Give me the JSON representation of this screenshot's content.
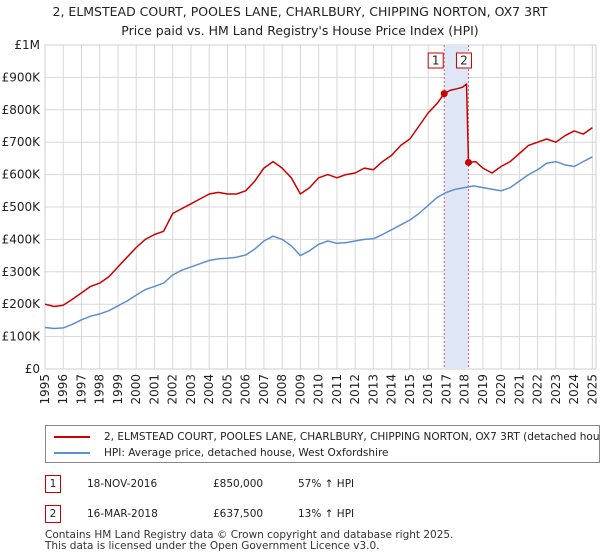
{
  "title_line1": "2, ELMSTEAD COURT, POOLES LANE, CHARLBURY, CHIPPING NORTON, OX7 3RT",
  "title_line2": "Price paid vs. HM Land Registry's House Price Index (HPI)",
  "colors": {
    "property": "#cc0000",
    "hpi": "#5b8fd0",
    "highlight": "#dfe7f7",
    "marker_border": "#cc0000"
  },
  "chart_data": {
    "type": "line",
    "title": "2, ELMSTEAD COURT, POOLES LANE, CHARLBURY, CHIPPING NORTON, OX7 3RT — Price paid vs. HM Land Registry's House Price Index (HPI)",
    "xlabel": "",
    "ylabel": "",
    "xlim": [
      1995,
      2025.2
    ],
    "ylim": [
      0,
      1000000
    ],
    "y_ticks": [
      0,
      100000,
      200000,
      300000,
      400000,
      500000,
      600000,
      700000,
      800000,
      900000,
      1000000
    ],
    "y_tick_labels": [
      "£0",
      "£100K",
      "£200K",
      "£300K",
      "£400K",
      "£500K",
      "£600K",
      "£700K",
      "£800K",
      "£900K",
      "£1M"
    ],
    "x_ticks": [
      1995,
      1996,
      1997,
      1998,
      1999,
      2000,
      2001,
      2002,
      2003,
      2004,
      2005,
      2006,
      2007,
      2008,
      2009,
      2010,
      2011,
      2012,
      2013,
      2014,
      2015,
      2016,
      2017,
      2018,
      2019,
      2020,
      2021,
      2022,
      2023,
      2024,
      2025
    ],
    "x_tick_labels": [
      "1995",
      "1996",
      "1997",
      "1998",
      "1999",
      "2000",
      "2001",
      "2002",
      "2003",
      "2004",
      "2005",
      "2006",
      "2007",
      "2008",
      "2009",
      "2010",
      "2011",
      "2012",
      "2013",
      "2014",
      "2015",
      "2016",
      "2017",
      "2018",
      "2019",
      "2020",
      "2021",
      "2022",
      "2023",
      "2024",
      "2025"
    ],
    "grid": true,
    "series": [
      {
        "name": "2, ELMSTEAD COURT, POOLES LANE, CHARLBURY, CHIPPING NORTON, OX7 3RT (detached house)",
        "color": "#cc0000",
        "x": [
          1995.0,
          1995.5,
          1996.0,
          1996.5,
          1997.0,
          1997.5,
          1998.0,
          1998.5,
          1999.0,
          1999.5,
          2000.0,
          2000.5,
          2001.0,
          2001.5,
          2002.0,
          2002.5,
          2003.0,
          2003.5,
          2004.0,
          2004.5,
          2005.0,
          2005.5,
          2006.0,
          2006.5,
          2007.0,
          2007.5,
          2008.0,
          2008.5,
          2009.0,
          2009.5,
          2010.0,
          2010.5,
          2011.0,
          2011.5,
          2012.0,
          2012.5,
          2013.0,
          2013.5,
          2014.0,
          2014.5,
          2015.0,
          2015.5,
          2016.0,
          2016.5,
          2016.88,
          2017.2,
          2017.6,
          2017.9,
          2018.1,
          2018.21,
          2018.6,
          2019.0,
          2019.5,
          2020.0,
          2020.5,
          2021.0,
          2021.5,
          2022.0,
          2022.5,
          2023.0,
          2023.5,
          2024.0,
          2024.5,
          2025.0
        ],
        "values": [
          200000,
          193000,
          197000,
          215000,
          235000,
          255000,
          265000,
          285000,
          315000,
          345000,
          375000,
          400000,
          415000,
          425000,
          480000,
          495000,
          510000,
          525000,
          540000,
          545000,
          540000,
          540000,
          550000,
          580000,
          620000,
          640000,
          620000,
          590000,
          540000,
          560000,
          590000,
          600000,
          590000,
          600000,
          605000,
          620000,
          615000,
          640000,
          660000,
          690000,
          710000,
          750000,
          790000,
          820000,
          850000,
          860000,
          865000,
          870000,
          880000,
          637500,
          640000,
          620000,
          605000,
          625000,
          640000,
          665000,
          690000,
          700000,
          710000,
          700000,
          720000,
          735000,
          725000,
          745000
        ]
      },
      {
        "name": "HPI: Average price, detached house, West Oxfordshire",
        "color": "#5b8fd0",
        "x": [
          1995.0,
          1995.5,
          1996.0,
          1996.5,
          1997.0,
          1997.5,
          1998.0,
          1998.5,
          1999.0,
          1999.5,
          2000.0,
          2000.5,
          2001.0,
          2001.5,
          2002.0,
          2002.5,
          2003.0,
          2003.5,
          2004.0,
          2004.5,
          2005.0,
          2005.5,
          2006.0,
          2006.5,
          2007.0,
          2007.5,
          2008.0,
          2008.5,
          2009.0,
          2009.5,
          2010.0,
          2010.5,
          2011.0,
          2011.5,
          2012.0,
          2012.5,
          2013.0,
          2013.5,
          2014.0,
          2014.5,
          2015.0,
          2015.5,
          2016.0,
          2016.5,
          2017.0,
          2017.5,
          2018.0,
          2018.5,
          2019.0,
          2019.5,
          2020.0,
          2020.5,
          2021.0,
          2021.5,
          2022.0,
          2022.5,
          2023.0,
          2023.5,
          2024.0,
          2024.5,
          2025.0
        ],
        "values": [
          128000,
          125000,
          127000,
          138000,
          152000,
          163000,
          170000,
          180000,
          195000,
          210000,
          228000,
          245000,
          255000,
          265000,
          290000,
          305000,
          315000,
          325000,
          335000,
          340000,
          342000,
          345000,
          352000,
          370000,
          395000,
          410000,
          400000,
          380000,
          350000,
          365000,
          385000,
          395000,
          388000,
          390000,
          395000,
          400000,
          402000,
          415000,
          430000,
          445000,
          460000,
          480000,
          505000,
          530000,
          545000,
          555000,
          560000,
          565000,
          560000,
          555000,
          550000,
          560000,
          580000,
          600000,
          615000,
          635000,
          640000,
          630000,
          625000,
          640000,
          655000
        ]
      }
    ],
    "annotations": [
      {
        "label": "1",
        "x": 2016.88,
        "value": 850000
      },
      {
        "label": "2",
        "x": 2018.21,
        "value": 637500
      }
    ],
    "highlight_range": [
      2016.88,
      2018.21
    ]
  },
  "legend": {
    "property_label": "2, ELMSTEAD COURT, POOLES LANE, CHARLBURY, CHIPPING NORTON, OX7 3RT (detached house)",
    "hpi_label": "HPI: Average price, detached house, West Oxfordshire"
  },
  "transactions": [
    {
      "num": "1",
      "date": "18-NOV-2016",
      "price": "£850,000",
      "hpi": "57% ↑ HPI"
    },
    {
      "num": "2",
      "date": "16-MAR-2018",
      "price": "£637,500",
      "hpi": "13% ↑ HPI"
    }
  ],
  "footer_line1": "Contains HM Land Registry data © Crown copyright and database right 2025.",
  "footer_line2": "This data is licensed under the Open Government Licence v3.0."
}
